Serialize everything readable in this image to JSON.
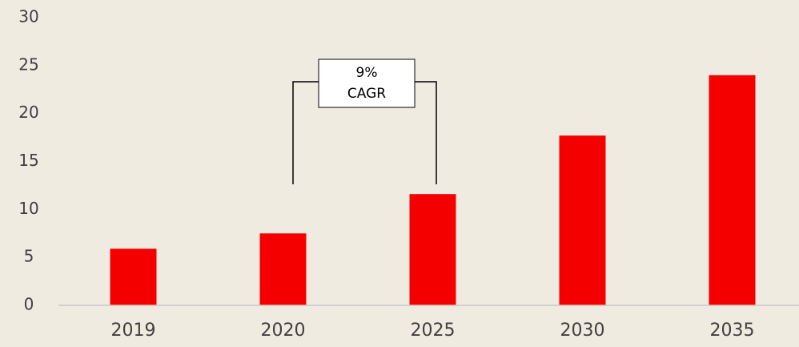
{
  "chart_data": {
    "type": "bar",
    "categories": [
      "2019",
      "2020",
      "2025",
      "2030",
      "2035"
    ],
    "values": [
      5.9,
      7.5,
      11.6,
      17.7,
      24.0
    ],
    "color": "#f50000",
    "ylim": [
      0,
      30
    ],
    "yticks": [
      0,
      5,
      10,
      15,
      20,
      25,
      30
    ],
    "grid": false,
    "annotation": [
      "9%",
      "CAGR"
    ]
  }
}
